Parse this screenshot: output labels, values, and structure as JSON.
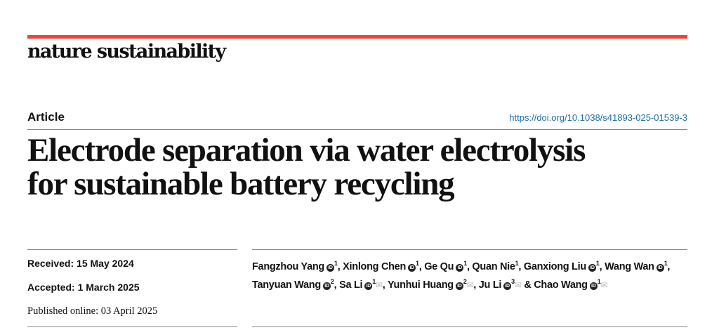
{
  "journal": "nature sustainability",
  "article_type": "Article",
  "doi": "https://doi.org/10.1038/s41893-025-01539-3",
  "title_lines": [
    "Electrode separation via water electrolysis",
    "for sustainable battery recycling"
  ],
  "meta": {
    "received": "Received: 15 May 2024",
    "accepted": "Accepted: 1 March 2025",
    "published": "Published online: 03 April 2025"
  },
  "authors": [
    {
      "name": "Fangzhou Yang",
      "aff": "1",
      "orcid": true,
      "corr": false,
      "sep": ", "
    },
    {
      "name": "Xinlong Chen",
      "aff": "1",
      "orcid": true,
      "corr": false,
      "sep": ", "
    },
    {
      "name": "Ge Qu",
      "aff": "1",
      "orcid": true,
      "corr": false,
      "sep": ", "
    },
    {
      "name": "Quan Nie",
      "aff": "1",
      "orcid": false,
      "corr": false,
      "sep": ", "
    },
    {
      "name": "Ganxiong Liu",
      "aff": "1",
      "orcid": true,
      "corr": false,
      "sep": ", "
    },
    {
      "name": "Wang Wan",
      "aff": "1",
      "orcid": true,
      "corr": false,
      "sep": ", "
    },
    {
      "name": "Tanyuan Wang",
      "aff": "2",
      "orcid": true,
      "corr": false,
      "sep": ", "
    },
    {
      "name": "Sa Li",
      "aff": "1",
      "orcid": true,
      "corr": true,
      "sep": ", "
    },
    {
      "name": "Yunhui Huang",
      "aff": "2",
      "orcid": true,
      "corr": true,
      "sep": ", "
    },
    {
      "name": "Ju Li",
      "aff": "3",
      "orcid": true,
      "corr": true,
      "sep": " & "
    },
    {
      "name": "Chao Wang",
      "aff": "1",
      "orcid": true,
      "corr": true,
      "sep": ""
    }
  ],
  "colors": {
    "accent_bar": "#e8463a",
    "link": "#1f6fa8"
  }
}
